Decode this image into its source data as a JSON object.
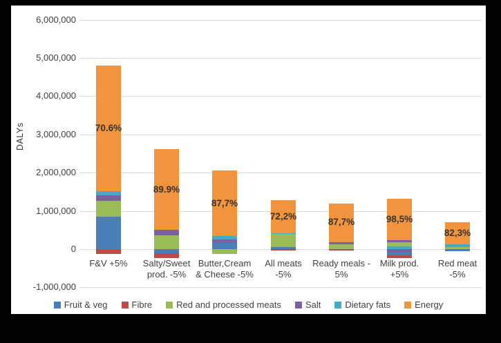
{
  "chart_data": {
    "type": "bar",
    "stacked": true,
    "title": "",
    "ylabel": "DALYs",
    "xlabel": "",
    "ylim": [
      -1000000,
      6000000
    ],
    "grid": true,
    "legend_position": "bottom",
    "yticks": [
      {
        "value": 6000000,
        "label": "6,000,000"
      },
      {
        "value": 5000000,
        "label": "5,000,000"
      },
      {
        "value": 4000000,
        "label": "4,000,000"
      },
      {
        "value": 3000000,
        "label": "3,000,000"
      },
      {
        "value": 2000000,
        "label": "2,000,000"
      },
      {
        "value": 1000000,
        "label": "1,000,000"
      },
      {
        "value": 0,
        "label": "0"
      },
      {
        "value": -1000000,
        "label": "-1,000,000"
      }
    ],
    "series": [
      {
        "id": "fruit_veg",
        "name": "Fruit & veg",
        "color": "#4a7ebb"
      },
      {
        "id": "fibre",
        "name": "Fibre",
        "color": "#bf4b47"
      },
      {
        "id": "red_processed_meats",
        "name": "Red and processed meats",
        "color": "#9bba58"
      },
      {
        "id": "salt",
        "name": "Salt",
        "color": "#7d60a0"
      },
      {
        "id": "dietary_fats",
        "name": "Dietary fats",
        "color": "#45aac5"
      },
      {
        "id": "energy",
        "name": "Energy",
        "color": "#f0953e"
      }
    ],
    "categories": [
      "F&V +5%",
      "Salty/Sweet prod. -5%",
      "Butter,Cream & Cheese -5%",
      "All meats -5%",
      "Ready meals - 5%",
      "Milk prod. +5%",
      "Red meat -5%"
    ],
    "bars": [
      {
        "category": "F&V +5%",
        "category_lines": [
          "F&V +5%"
        ],
        "energy_share_label": "70.6%",
        "positive_segments": [
          {
            "series": "fruit_veg",
            "value": 850000
          },
          {
            "series": "red_processed_meats",
            "value": 420000
          },
          {
            "series": "salt",
            "value": 130000
          },
          {
            "series": "dietary_fats",
            "value": 110000
          },
          {
            "series": "energy",
            "value": 3290000
          }
        ],
        "negative_segments": [
          {
            "series": "fibre",
            "value": -120000
          }
        ]
      },
      {
        "category": "Salty/Sweet prod. -5%",
        "category_lines": [
          "Salty/Sweet",
          "prod. -5%"
        ],
        "energy_share_label": "89.9%",
        "positive_segments": [
          {
            "series": "red_processed_meats",
            "value": 360000
          },
          {
            "series": "salt",
            "value": 140000
          },
          {
            "series": "energy",
            "value": 2120000
          }
        ],
        "negative_segments": [
          {
            "series": "fruit_veg",
            "value": -110000
          },
          {
            "series": "fibre",
            "value": -120000
          }
        ]
      },
      {
        "category": "Butter,Cream & Cheese -5%",
        "category_lines": [
          "Butter,Cream",
          "& Cheese -5%"
        ],
        "energy_share_label": "87,7%",
        "positive_segments": [
          {
            "series": "fruit_veg",
            "value": 160000
          },
          {
            "series": "salt",
            "value": 100000
          },
          {
            "series": "dietary_fats",
            "value": 80000
          },
          {
            "series": "energy",
            "value": 1710000
          }
        ],
        "negative_segments": [
          {
            "series": "red_processed_meats",
            "value": -120000
          }
        ]
      },
      {
        "category": "All meats -5%",
        "category_lines": [
          "All meats",
          "-5%"
        ],
        "energy_share_label": "72,2%",
        "positive_segments": [
          {
            "series": "fruit_veg",
            "value": 60000
          },
          {
            "series": "red_processed_meats",
            "value": 330000
          },
          {
            "series": "dietary_fats",
            "value": 30000
          },
          {
            "series": "energy",
            "value": 870000
          }
        ],
        "negative_segments": [
          {
            "series": "fibre",
            "value": -40000
          }
        ]
      },
      {
        "category": "Ready meals - 5%",
        "category_lines": [
          "Ready meals -",
          "5%"
        ],
        "energy_share_label": "87,7%",
        "positive_segments": [
          {
            "series": "red_processed_meats",
            "value": 130000
          },
          {
            "series": "salt",
            "value": 60000
          },
          {
            "series": "energy",
            "value": 1010000
          }
        ],
        "negative_segments": [
          {
            "series": "fibre",
            "value": -40000
          }
        ]
      },
      {
        "category": "Milk prod. +5%",
        "category_lines": [
          "Milk prod.",
          "+5%"
        ],
        "energy_share_label": "98,5%",
        "positive_segments": [
          {
            "series": "dietary_fats",
            "value": 70000
          },
          {
            "series": "red_processed_meats",
            "value": 110000
          },
          {
            "series": "salt",
            "value": 50000
          },
          {
            "series": "energy",
            "value": 1080000
          }
        ],
        "negative_segments": [
          {
            "series": "salt",
            "value": -80000
          },
          {
            "series": "fruit_veg",
            "value": -80000
          },
          {
            "series": "fibre",
            "value": -80000
          }
        ]
      },
      {
        "category": "Red meat -5%",
        "category_lines": [
          "Red meat",
          "-5%"
        ],
        "energy_share_label": "82,3%",
        "positive_segments": [
          {
            "series": "red_processed_meats",
            "value": 60000
          },
          {
            "series": "dietary_fats",
            "value": 70000
          },
          {
            "series": "energy",
            "value": 570000
          }
        ],
        "negative_segments": [
          {
            "series": "fruit_veg",
            "value": -60000
          }
        ]
      }
    ]
  }
}
